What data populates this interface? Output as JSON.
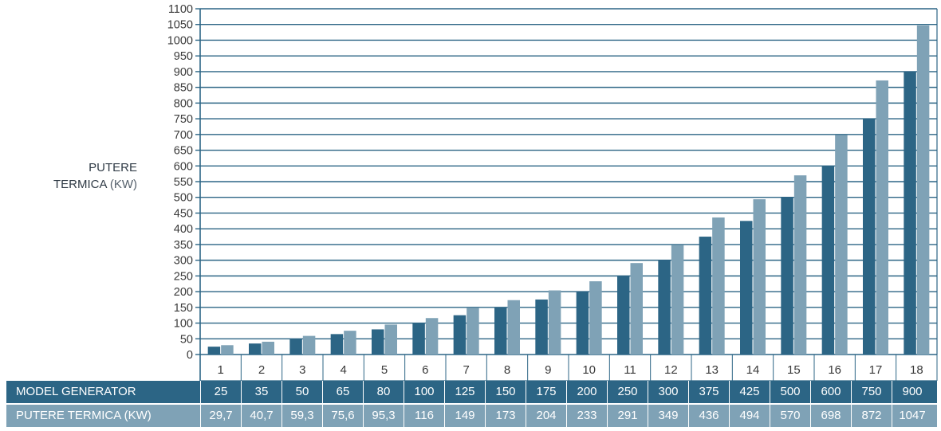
{
  "chart_data": {
    "type": "bar",
    "title": "",
    "ylabel": "PUTERE TERMICA",
    "ylabel_unit": "(KW)",
    "ylim": [
      0,
      1100
    ],
    "yticks": [
      0,
      50,
      100,
      150,
      200,
      250,
      300,
      350,
      400,
      450,
      500,
      550,
      600,
      650,
      700,
      750,
      800,
      850,
      900,
      950,
      1000,
      1050,
      1100
    ],
    "categories": [
      "1",
      "2",
      "3",
      "4",
      "5",
      "6",
      "7",
      "8",
      "9",
      "10",
      "11",
      "12",
      "13",
      "14",
      "15",
      "16",
      "17",
      "18"
    ],
    "grid": true,
    "series": [
      {
        "name": "MODEL GENERATOR",
        "color": "#2c6585",
        "values": [
          25,
          35,
          50,
          65,
          80,
          100,
          125,
          150,
          175,
          200,
          250,
          300,
          375,
          425,
          500,
          600,
          750,
          900
        ]
      },
      {
        "name": "PUTERE TERMICA (KW)",
        "color": "#7fa2b6",
        "values": [
          29.7,
          40.7,
          59.3,
          75.6,
          95.3,
          116,
          149,
          173,
          204,
          233,
          291,
          349,
          436,
          494,
          570,
          698,
          872,
          1047
        ]
      }
    ]
  },
  "table": {
    "row1": {
      "label": "MODEL GENERATOR",
      "cells": [
        "25",
        "35",
        "50",
        "65",
        "80",
        "100",
        "125",
        "150",
        "175",
        "200",
        "250",
        "300",
        "375",
        "425",
        "500",
        "600",
        "750",
        "900"
      ]
    },
    "row2": {
      "label": "PUTERE TERMICA",
      "unit": "(KW)",
      "cells": [
        "29,7",
        "40,7",
        "59,3",
        "75,6",
        "95,3",
        "116",
        "149",
        "173",
        "204",
        "233",
        "291",
        "349",
        "436",
        "494",
        "570",
        "698",
        "872",
        "1047"
      ]
    }
  },
  "colors": {
    "axis": "#2c6585",
    "grid": "#2c6585",
    "tick_text": "#3a3a3a"
  }
}
